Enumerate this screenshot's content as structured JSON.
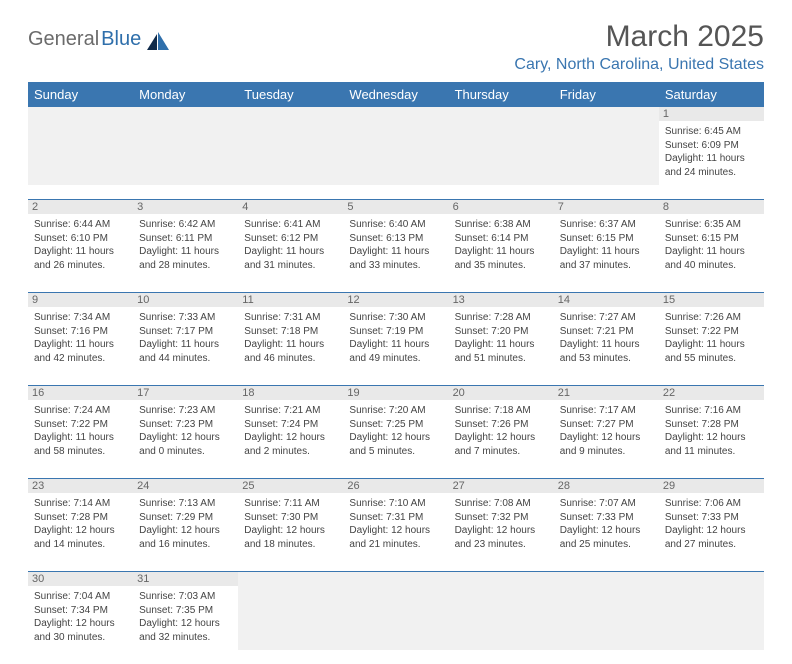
{
  "logo": {
    "text1": "General",
    "text2": "Blue"
  },
  "title": "March 2025",
  "location": "Cary, North Carolina, United States",
  "colors": {
    "header_bg": "#3a76b0",
    "header_text": "#ffffff",
    "text": "#444444",
    "accent": "#3a76b0",
    "daynum_bg": "#e9e9e9",
    "empty_bg": "#f1f1f1"
  },
  "weekdays": [
    "Sunday",
    "Monday",
    "Tuesday",
    "Wednesday",
    "Thursday",
    "Friday",
    "Saturday"
  ],
  "grid": [
    [
      {
        "empty": true
      },
      {
        "empty": true
      },
      {
        "empty": true
      },
      {
        "empty": true
      },
      {
        "empty": true
      },
      {
        "empty": true
      },
      {
        "day": "1",
        "sunrise": "Sunrise: 6:45 AM",
        "sunset": "Sunset: 6:09 PM",
        "daylight": "Daylight: 11 hours and 24 minutes."
      }
    ],
    [
      {
        "day": "2",
        "sunrise": "Sunrise: 6:44 AM",
        "sunset": "Sunset: 6:10 PM",
        "daylight": "Daylight: 11 hours and 26 minutes."
      },
      {
        "day": "3",
        "sunrise": "Sunrise: 6:42 AM",
        "sunset": "Sunset: 6:11 PM",
        "daylight": "Daylight: 11 hours and 28 minutes."
      },
      {
        "day": "4",
        "sunrise": "Sunrise: 6:41 AM",
        "sunset": "Sunset: 6:12 PM",
        "daylight": "Daylight: 11 hours and 31 minutes."
      },
      {
        "day": "5",
        "sunrise": "Sunrise: 6:40 AM",
        "sunset": "Sunset: 6:13 PM",
        "daylight": "Daylight: 11 hours and 33 minutes."
      },
      {
        "day": "6",
        "sunrise": "Sunrise: 6:38 AM",
        "sunset": "Sunset: 6:14 PM",
        "daylight": "Daylight: 11 hours and 35 minutes."
      },
      {
        "day": "7",
        "sunrise": "Sunrise: 6:37 AM",
        "sunset": "Sunset: 6:15 PM",
        "daylight": "Daylight: 11 hours and 37 minutes."
      },
      {
        "day": "8",
        "sunrise": "Sunrise: 6:35 AM",
        "sunset": "Sunset: 6:15 PM",
        "daylight": "Daylight: 11 hours and 40 minutes."
      }
    ],
    [
      {
        "day": "9",
        "sunrise": "Sunrise: 7:34 AM",
        "sunset": "Sunset: 7:16 PM",
        "daylight": "Daylight: 11 hours and 42 minutes."
      },
      {
        "day": "10",
        "sunrise": "Sunrise: 7:33 AM",
        "sunset": "Sunset: 7:17 PM",
        "daylight": "Daylight: 11 hours and 44 minutes."
      },
      {
        "day": "11",
        "sunrise": "Sunrise: 7:31 AM",
        "sunset": "Sunset: 7:18 PM",
        "daylight": "Daylight: 11 hours and 46 minutes."
      },
      {
        "day": "12",
        "sunrise": "Sunrise: 7:30 AM",
        "sunset": "Sunset: 7:19 PM",
        "daylight": "Daylight: 11 hours and 49 minutes."
      },
      {
        "day": "13",
        "sunrise": "Sunrise: 7:28 AM",
        "sunset": "Sunset: 7:20 PM",
        "daylight": "Daylight: 11 hours and 51 minutes."
      },
      {
        "day": "14",
        "sunrise": "Sunrise: 7:27 AM",
        "sunset": "Sunset: 7:21 PM",
        "daylight": "Daylight: 11 hours and 53 minutes."
      },
      {
        "day": "15",
        "sunrise": "Sunrise: 7:26 AM",
        "sunset": "Sunset: 7:22 PM",
        "daylight": "Daylight: 11 hours and 55 minutes."
      }
    ],
    [
      {
        "day": "16",
        "sunrise": "Sunrise: 7:24 AM",
        "sunset": "Sunset: 7:22 PM",
        "daylight": "Daylight: 11 hours and 58 minutes."
      },
      {
        "day": "17",
        "sunrise": "Sunrise: 7:23 AM",
        "sunset": "Sunset: 7:23 PM",
        "daylight": "Daylight: 12 hours and 0 minutes."
      },
      {
        "day": "18",
        "sunrise": "Sunrise: 7:21 AM",
        "sunset": "Sunset: 7:24 PM",
        "daylight": "Daylight: 12 hours and 2 minutes."
      },
      {
        "day": "19",
        "sunrise": "Sunrise: 7:20 AM",
        "sunset": "Sunset: 7:25 PM",
        "daylight": "Daylight: 12 hours and 5 minutes."
      },
      {
        "day": "20",
        "sunrise": "Sunrise: 7:18 AM",
        "sunset": "Sunset: 7:26 PM",
        "daylight": "Daylight: 12 hours and 7 minutes."
      },
      {
        "day": "21",
        "sunrise": "Sunrise: 7:17 AM",
        "sunset": "Sunset: 7:27 PM",
        "daylight": "Daylight: 12 hours and 9 minutes."
      },
      {
        "day": "22",
        "sunrise": "Sunrise: 7:16 AM",
        "sunset": "Sunset: 7:28 PM",
        "daylight": "Daylight: 12 hours and 11 minutes."
      }
    ],
    [
      {
        "day": "23",
        "sunrise": "Sunrise: 7:14 AM",
        "sunset": "Sunset: 7:28 PM",
        "daylight": "Daylight: 12 hours and 14 minutes."
      },
      {
        "day": "24",
        "sunrise": "Sunrise: 7:13 AM",
        "sunset": "Sunset: 7:29 PM",
        "daylight": "Daylight: 12 hours and 16 minutes."
      },
      {
        "day": "25",
        "sunrise": "Sunrise: 7:11 AM",
        "sunset": "Sunset: 7:30 PM",
        "daylight": "Daylight: 12 hours and 18 minutes."
      },
      {
        "day": "26",
        "sunrise": "Sunrise: 7:10 AM",
        "sunset": "Sunset: 7:31 PM",
        "daylight": "Daylight: 12 hours and 21 minutes."
      },
      {
        "day": "27",
        "sunrise": "Sunrise: 7:08 AM",
        "sunset": "Sunset: 7:32 PM",
        "daylight": "Daylight: 12 hours and 23 minutes."
      },
      {
        "day": "28",
        "sunrise": "Sunrise: 7:07 AM",
        "sunset": "Sunset: 7:33 PM",
        "daylight": "Daylight: 12 hours and 25 minutes."
      },
      {
        "day": "29",
        "sunrise": "Sunrise: 7:06 AM",
        "sunset": "Sunset: 7:33 PM",
        "daylight": "Daylight: 12 hours and 27 minutes."
      }
    ],
    [
      {
        "day": "30",
        "sunrise": "Sunrise: 7:04 AM",
        "sunset": "Sunset: 7:34 PM",
        "daylight": "Daylight: 12 hours and 30 minutes."
      },
      {
        "day": "31",
        "sunrise": "Sunrise: 7:03 AM",
        "sunset": "Sunset: 7:35 PM",
        "daylight": "Daylight: 12 hours and 32 minutes."
      },
      {
        "empty": true
      },
      {
        "empty": true
      },
      {
        "empty": true
      },
      {
        "empty": true
      },
      {
        "empty": true
      }
    ]
  ]
}
